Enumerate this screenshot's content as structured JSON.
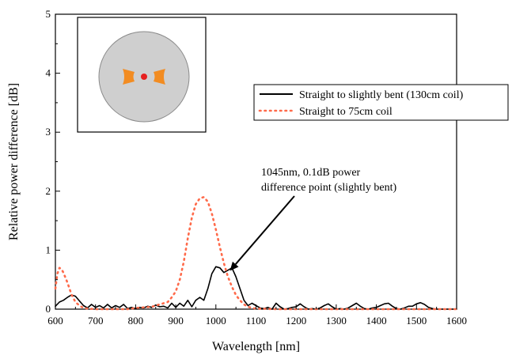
{
  "chart_data": {
    "type": "line",
    "xlabel": "Wavelength [nm]",
    "ylabel": "Relative power difference [dB]",
    "xlim": [
      600,
      1600
    ],
    "ylim": [
      0,
      5
    ],
    "xticks": [
      600,
      700,
      800,
      900,
      1000,
      1100,
      1200,
      1300,
      1400,
      1500,
      1600
    ],
    "yticks": [
      0,
      1,
      2,
      3,
      4,
      5
    ],
    "grid": false,
    "legend_position": "top-right",
    "series": [
      {
        "name": "Straight to slightly bent (130cm coil)",
        "color": "#000000",
        "style": "solid",
        "x": [
          600,
          610,
          620,
          630,
          640,
          650,
          660,
          670,
          680,
          690,
          700,
          710,
          720,
          730,
          740,
          750,
          760,
          770,
          780,
          790,
          800,
          810,
          820,
          830,
          840,
          850,
          860,
          870,
          880,
          890,
          900,
          910,
          920,
          930,
          940,
          950,
          960,
          970,
          980,
          990,
          1000,
          1010,
          1020,
          1030,
          1040,
          1050,
          1060,
          1070,
          1080,
          1090,
          1100,
          1110,
          1120,
          1130,
          1140,
          1150,
          1160,
          1170,
          1180,
          1190,
          1200,
          1210,
          1220,
          1230,
          1240,
          1250,
          1260,
          1270,
          1280,
          1290,
          1300,
          1310,
          1320,
          1330,
          1340,
          1350,
          1360,
          1370,
          1380,
          1390,
          1400,
          1410,
          1420,
          1430,
          1440,
          1450,
          1460,
          1470,
          1480,
          1490,
          1500,
          1510,
          1520,
          1530,
          1540,
          1550,
          1560,
          1570,
          1580,
          1590,
          1600
        ],
        "y": [
          0.05,
          0.12,
          0.15,
          0.2,
          0.24,
          0.22,
          0.14,
          0.06,
          0.02,
          0.08,
          0.03,
          0.06,
          0.02,
          0.08,
          0.02,
          0.06,
          0.03,
          0.08,
          0.01,
          0.03,
          0.01,
          0.03,
          0.02,
          0.05,
          0.03,
          0.07,
          0.04,
          0.05,
          0.02,
          0.1,
          0.03,
          0.1,
          0.05,
          0.15,
          0.04,
          0.15,
          0.2,
          0.15,
          0.35,
          0.6,
          0.72,
          0.7,
          0.62,
          0.66,
          0.7,
          0.55,
          0.35,
          0.15,
          0.06,
          0.1,
          0.06,
          0.02,
          0.01,
          0.03,
          0.0,
          0.1,
          0.04,
          0.0,
          0.01,
          0.03,
          0.04,
          0.09,
          0.04,
          0.0,
          0.01,
          0.0,
          0.02,
          0.06,
          0.09,
          0.04,
          0.0,
          0.01,
          0.0,
          0.02,
          0.06,
          0.1,
          0.05,
          0.01,
          0.0,
          0.02,
          0.03,
          0.06,
          0.09,
          0.1,
          0.05,
          0.01,
          0.0,
          0.02,
          0.05,
          0.05,
          0.09,
          0.11,
          0.08,
          0.03,
          0.01,
          0.0,
          0.0,
          0.0,
          0.0,
          0.0,
          0.0
        ]
      },
      {
        "name": "Straight to 75cm coil",
        "color": "#ff6a4a",
        "style": "dotted",
        "x": [
          600,
          605,
          610,
          615,
          620,
          630,
          640,
          650,
          660,
          670,
          680,
          700,
          720,
          740,
          760,
          780,
          800,
          820,
          840,
          860,
          880,
          890,
          900,
          910,
          920,
          930,
          940,
          950,
          960,
          970,
          980,
          990,
          1000,
          1010,
          1020,
          1030,
          1040,
          1050,
          1060,
          1070,
          1080,
          1090,
          1100,
          1150,
          1200,
          1300,
          1400,
          1500,
          1600
        ],
        "y": [
          0.35,
          0.6,
          0.7,
          0.68,
          0.62,
          0.45,
          0.25,
          0.12,
          0.06,
          0.02,
          0.01,
          0.0,
          0.0,
          0.0,
          0.0,
          0.0,
          0.02,
          0.03,
          0.04,
          0.08,
          0.12,
          0.2,
          0.3,
          0.5,
          0.8,
          1.2,
          1.55,
          1.78,
          1.88,
          1.9,
          1.82,
          1.62,
          1.35,
          1.05,
          0.78,
          0.55,
          0.38,
          0.24,
          0.15,
          0.08,
          0.04,
          0.02,
          0.01,
          0.0,
          0.0,
          0.0,
          0.0,
          0.0,
          0.0
        ]
      }
    ],
    "annotations": [
      {
        "text_lines": [
          "1045nm, 0.1dB power",
          "difference point (slightly bent)"
        ],
        "arrow_to": {
          "x": 1035,
          "y": 0.65
        }
      }
    ]
  },
  "inset": {
    "outer_fill": "#cfcfcf",
    "core_color": "#e62020",
    "stress_color": "#f28c22"
  }
}
